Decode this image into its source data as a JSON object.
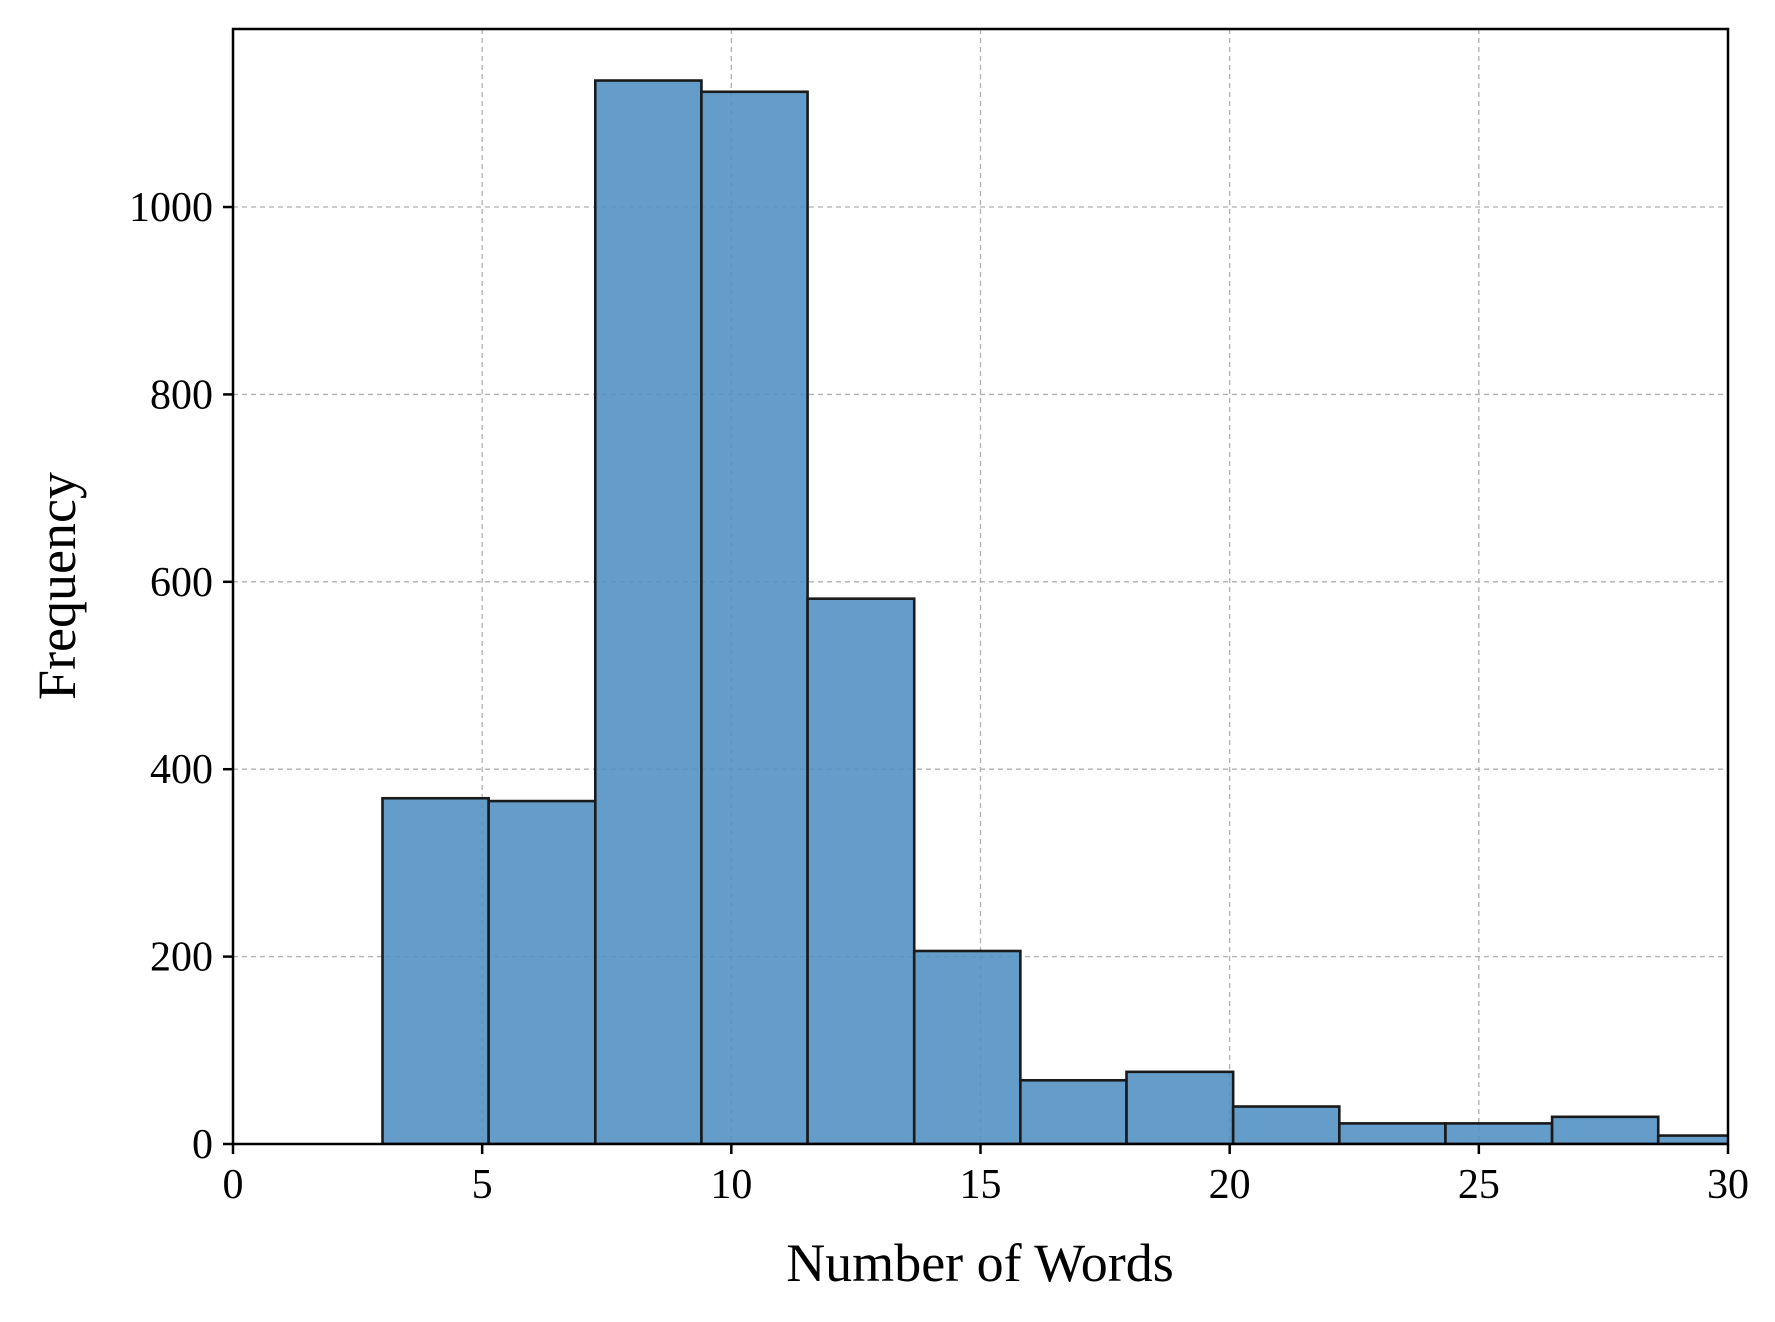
{
  "chart_data": {
    "type": "bar",
    "histogram": true,
    "title": "",
    "xlabel": "Number of Words",
    "ylabel": "Frequency",
    "xlim": [
      0,
      30
    ],
    "ylim": [
      0,
      1190
    ],
    "xticks": [
      "0",
      "5",
      "10",
      "15",
      "20",
      "25",
      "30"
    ],
    "yticks": [
      "0",
      "200",
      "400",
      "600",
      "800",
      "1000"
    ],
    "grid": true,
    "legend": "none",
    "bar_color": "#4f8fc3",
    "edge_color": "#1a1a1a",
    "bins": [
      {
        "x0": 3.0,
        "x1": 5.13,
        "count": 369
      },
      {
        "x0": 5.13,
        "x1": 7.27,
        "count": 366
      },
      {
        "x0": 7.27,
        "x1": 9.4,
        "count": 1135
      },
      {
        "x0": 9.4,
        "x1": 11.53,
        "count": 1123
      },
      {
        "x0": 11.53,
        "x1": 13.67,
        "count": 582
      },
      {
        "x0": 13.67,
        "x1": 15.8,
        "count": 206
      },
      {
        "x0": 15.8,
        "x1": 17.93,
        "count": 68
      },
      {
        "x0": 17.93,
        "x1": 20.07,
        "count": 77
      },
      {
        "x0": 20.07,
        "x1": 22.2,
        "count": 40
      },
      {
        "x0": 22.2,
        "x1": 24.33,
        "count": 22
      },
      {
        "x0": 24.33,
        "x1": 26.47,
        "count": 22
      },
      {
        "x0": 26.47,
        "x1": 28.6,
        "count": 29
      },
      {
        "x0": 28.6,
        "x1": 30.73,
        "count": 9
      }
    ]
  }
}
